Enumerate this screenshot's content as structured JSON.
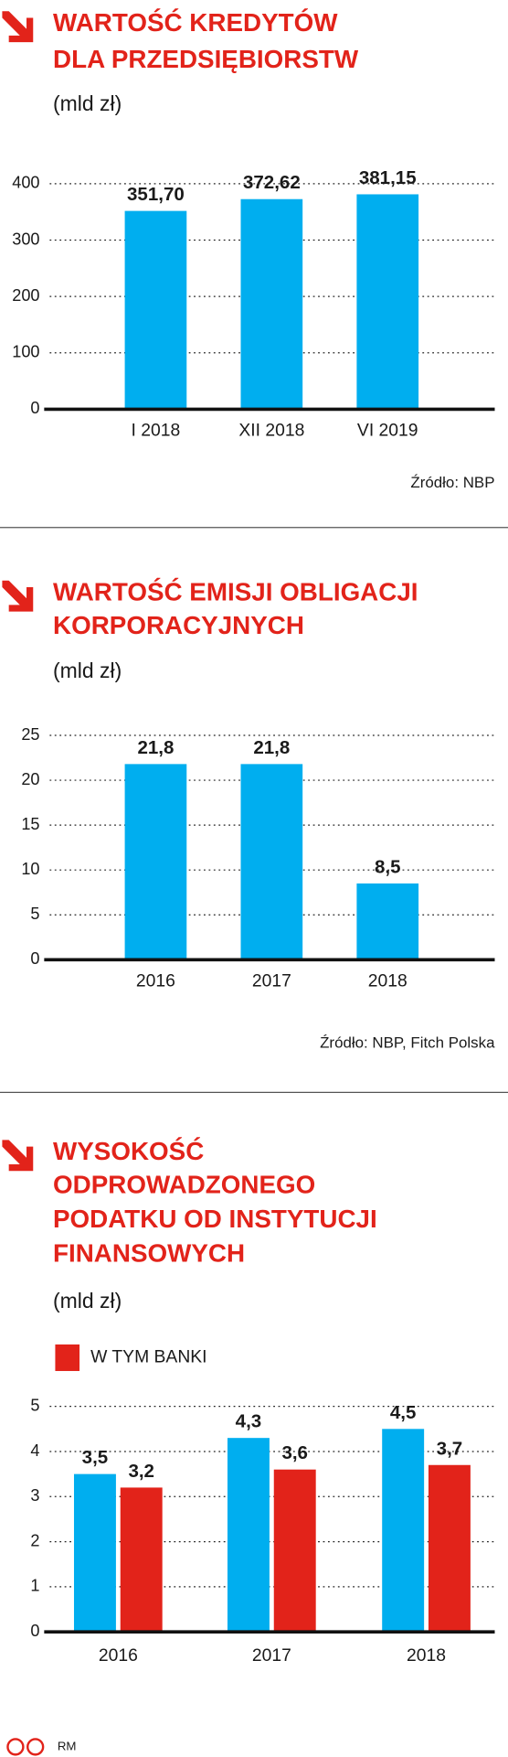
{
  "chart_data": [
    {
      "type": "bar",
      "title": [
        "WARTOŚĆ KREDYTÓW",
        "DLA PRZEDSIĘBIORSTW"
      ],
      "subtitle": "(mld zł)",
      "categories": [
        "I 2018",
        "XII 2018",
        "VI 2019"
      ],
      "values": [
        351.7,
        372.62,
        381.15
      ],
      "value_labels": [
        "351,70",
        "372,62",
        "381,15"
      ],
      "color": "#00aeef",
      "ylim": [
        0,
        400
      ],
      "yticks": [
        0,
        100,
        200,
        300,
        400
      ],
      "grid": true,
      "source": "Źródło: NBP"
    },
    {
      "type": "bar",
      "title": [
        "WARTOŚĆ EMISJI OBLIGACJI",
        "KORPORACYJNYCH"
      ],
      "subtitle": "(mld zł)",
      "categories": [
        "2016",
        "2017",
        "2018"
      ],
      "values": [
        21.8,
        21.8,
        8.5
      ],
      "value_labels": [
        "21,8",
        "21,8",
        "8,5"
      ],
      "color": "#00aeef",
      "ylim": [
        0,
        25
      ],
      "yticks": [
        0,
        5,
        10,
        15,
        20,
        25
      ],
      "grid": true,
      "source": "Źródło: NBP, Fitch Polska"
    },
    {
      "type": "grouped-bar",
      "title": [
        "WYSOKOŚĆ",
        "ODPROWADZONEGO",
        "PODATKU OD INSTYTUCJI",
        "FINANSOWYCH"
      ],
      "subtitle": "(mld zł)",
      "categories": [
        "2016",
        "2017",
        "2018"
      ],
      "series": [
        {
          "color": "#00aeef",
          "values": [
            3.5,
            4.3,
            4.5
          ],
          "value_labels": [
            "3,5",
            "4,3",
            "4,5"
          ]
        },
        {
          "name": "W TYM BANKI",
          "color": "#e2231a",
          "values": [
            3.2,
            3.6,
            3.7
          ],
          "value_labels": [
            "3,2",
            "3,6",
            "3,7"
          ]
        }
      ],
      "ylim": [
        0,
        5
      ],
      "yticks": [
        0,
        1,
        2,
        3,
        4,
        5
      ],
      "grid": true,
      "legend": "top-left"
    }
  ],
  "footer": "RM"
}
